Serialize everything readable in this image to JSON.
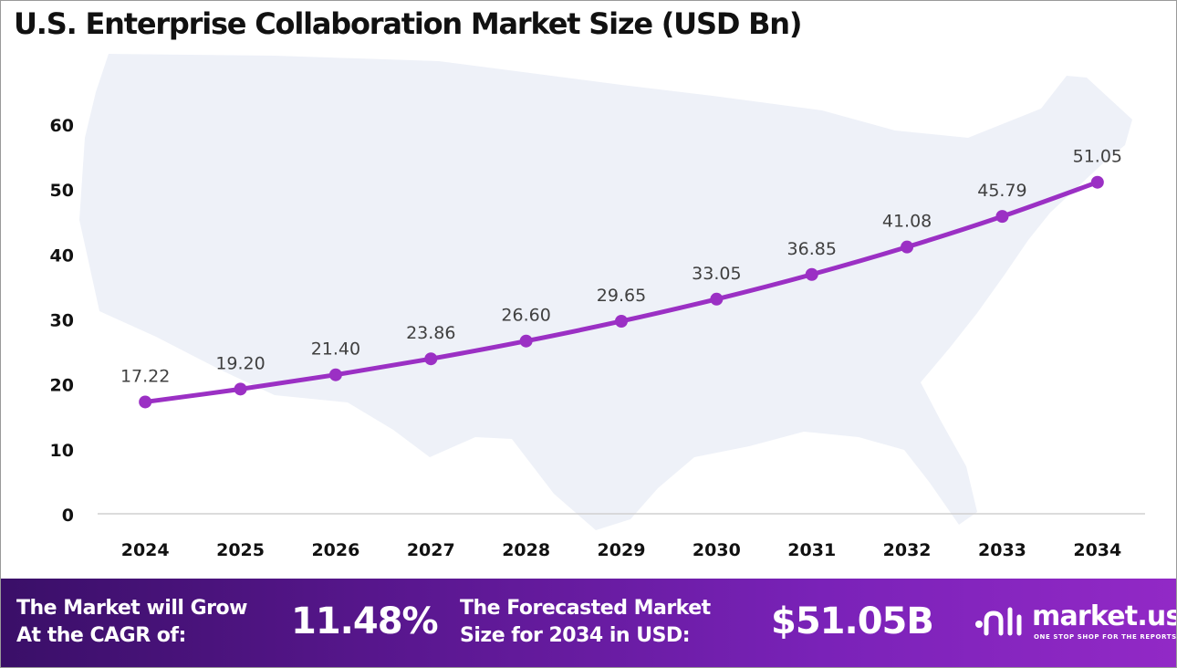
{
  "title": "U.S. Enterprise Collaboration Market Size (USD Bn)",
  "colors": {
    "line": "#9b30c4",
    "marker": "#9b30c4",
    "map": "#eef1f8",
    "footer_start": "#3a0f68",
    "footer_end": "#9229c6"
  },
  "chart_data": {
    "type": "line",
    "title": "U.S. Enterprise Collaboration Market Size (USD Bn)",
    "categories": [
      "2024",
      "2025",
      "2026",
      "2027",
      "2028",
      "2029",
      "2030",
      "2031",
      "2032",
      "2033",
      "2034"
    ],
    "values": [
      17.22,
      19.2,
      21.4,
      23.86,
      26.6,
      29.65,
      33.05,
      36.85,
      41.08,
      45.79,
      51.05
    ],
    "value_labels": [
      "17.22",
      "19.20",
      "21.40",
      "23.86",
      "26.60",
      "29.65",
      "33.05",
      "36.85",
      "41.08",
      "45.79",
      "51.05"
    ],
    "y_ticks": [
      "0",
      "10",
      "20",
      "30",
      "40",
      "50",
      "60"
    ],
    "ylim": [
      0,
      60
    ],
    "grid": false,
    "legend": "none",
    "xlabel": "",
    "ylabel": ""
  },
  "footer": {
    "cagr_line1": "The Market will Grow",
    "cagr_line2": "At the CAGR of:",
    "cagr_value": "11.48%",
    "forecast_line1": "The Forecasted Market",
    "forecast_line2": "Size for 2034 in USD:",
    "forecast_value": "$51.05B"
  },
  "logo": {
    "name": "market.us",
    "tagline": "ONE STOP SHOP FOR THE REPORTS",
    "icon": "market-us-logo-icon"
  }
}
